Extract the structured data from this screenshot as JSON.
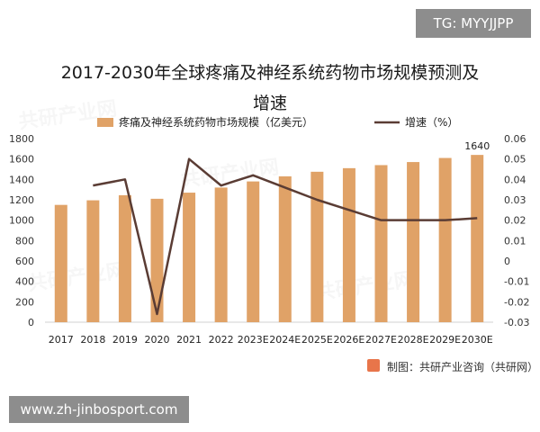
{
  "tag_label": "TG: MYYJJPP",
  "url_label": "www.zh-jinbosport.com",
  "source_text": "制图：共研产业咨询（共研网）",
  "chart_data": {
    "type": "bar",
    "title_line1": "2017-2030年全球疼痛及神经系统药物市场规模预测及",
    "title_line2": "增速",
    "categories": [
      "2017",
      "2018",
      "2019",
      "2020",
      "2021",
      "2022",
      "2023E",
      "2024E",
      "2025E",
      "2026E",
      "2027E",
      "2028E",
      "2029E",
      "2030E"
    ],
    "series": [
      {
        "name": "疼痛及神经系统药物市场规模（亿美元）",
        "axis": "left",
        "type": "bar",
        "color": "#e0a267",
        "values": [
          1150,
          1195,
          1245,
          1210,
          1270,
          1320,
          1380,
          1430,
          1475,
          1510,
          1540,
          1570,
          1610,
          1640
        ]
      },
      {
        "name": "增速（%）",
        "axis": "right",
        "type": "line",
        "color": "#5a3c34",
        "values": [
          null,
          0.037,
          0.04,
          -0.026,
          0.05,
          0.037,
          0.042,
          0.036,
          0.03,
          0.025,
          0.02,
          0.02,
          0.02,
          0.021
        ]
      }
    ],
    "left_axis": {
      "min": 0,
      "max": 1800,
      "ticks": [
        0,
        200,
        400,
        600,
        800,
        1000,
        1200,
        1400,
        1600,
        1800
      ]
    },
    "right_axis": {
      "min": -0.03,
      "max": 0.06,
      "ticks": [
        "-0.03",
        "-0.02",
        "-0.01",
        "0",
        "0.01",
        "0.02",
        "0.03",
        "0.04",
        "0.05",
        "0.06"
      ]
    },
    "data_labels": [
      {
        "category": "2030E",
        "text": "1640"
      }
    ],
    "legend_position": "top"
  }
}
